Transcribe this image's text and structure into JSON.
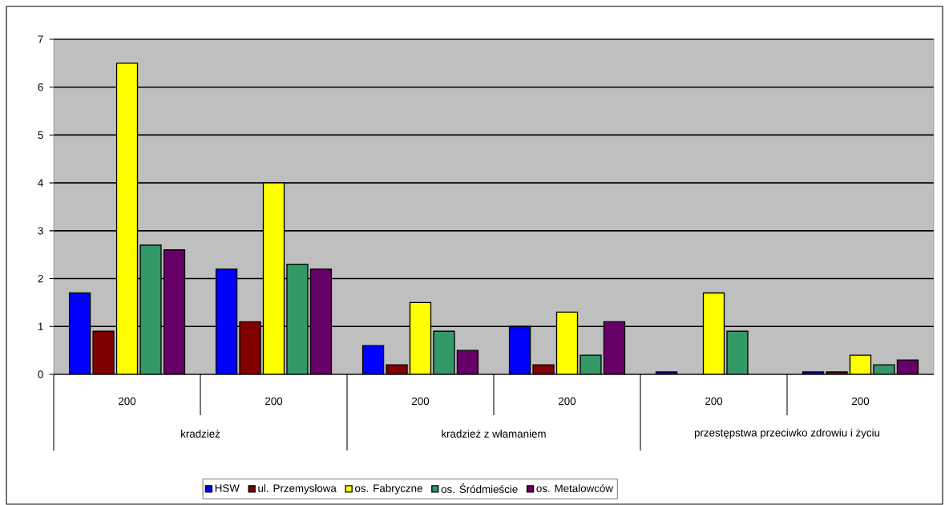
{
  "chart_data": {
    "type": "bar",
    "categories": [
      "200",
      "200",
      "200",
      "200",
      "200",
      "200"
    ],
    "annotations": [
      "kradzież",
      "kradzież z włamaniem",
      "przestępstwa przeciwko zdrowiu i życiu"
    ],
    "series": [
      {
        "name": "HSW",
        "color": "#0000ff",
        "values": [
          1.7,
          2.2,
          0.6,
          1.0,
          0.05,
          0.05
        ]
      },
      {
        "name": "ul. Przemysłowa",
        "color": "#800000",
        "values": [
          0.9,
          1.1,
          0.2,
          0.2,
          null,
          0.05
        ]
      },
      {
        "name": "os. Fabryczne",
        "color": "#ffff00",
        "values": [
          6.5,
          4.0,
          1.5,
          1.3,
          1.7,
          0.4
        ]
      },
      {
        "name": "os. Śródmieście",
        "color": "#339966",
        "values": [
          2.7,
          2.3,
          0.9,
          0.4,
          0.9,
          0.2
        ]
      },
      {
        "name": "os. Metalowców",
        "color": "#660066",
        "values": [
          2.6,
          2.2,
          0.5,
          1.1,
          null,
          0.3
        ]
      }
    ],
    "ylim": [
      0,
      7
    ],
    "yticks": [
      0,
      1,
      2,
      3,
      4,
      5,
      6,
      7
    ],
    "grid": "y",
    "legend": "bottom"
  }
}
